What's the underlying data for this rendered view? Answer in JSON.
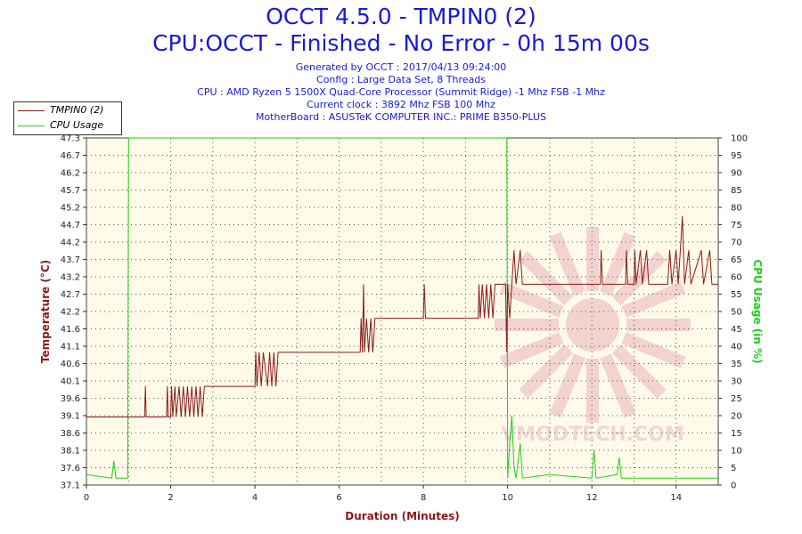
{
  "header": {
    "title": "OCCT 4.5.0 - TMPIN0 (2)",
    "subtitle": "CPU:OCCT - Finished - No Error - 0h 15m 00s",
    "info": [
      "Generated by OCCT : 2017/04/13 09:24:00",
      "Config : Large Data Set, 8 Threads",
      "CPU : AMD Ryzen 5 1500X Quad-Core Processor (Summit Ridge) -1 Mhz FSB -1 Mhz",
      "Current clock : 3892 Mhz FSB 100 Mhz",
      "MotherBoard : ASUSTeK COMPUTER INC.: PRIME B350-PLUS"
    ]
  },
  "watermark": "VMODTECH.COM",
  "colors": {
    "temp": "#8b1a1a",
    "cpu": "#22cc22",
    "title": "#1a1ad4",
    "plot_bg": "#fffbe8",
    "axis_label_left": "#8b1a1a",
    "axis_label_right": "#22cc22"
  },
  "chart_data": {
    "type": "line",
    "xlabel": "Duration (Minutes)",
    "ylabel_left": "Temperature (°C)",
    "ylabel_right": "CPU Usage (in %)",
    "xlim": [
      0,
      15
    ],
    "ylim_left": [
      37.1,
      47.3
    ],
    "ylim_right": [
      0,
      100
    ],
    "grid": true,
    "legend_position": "top-left",
    "x_ticks": [
      "0",
      "2",
      "4",
      "6",
      "8",
      "10",
      "12",
      "14"
    ],
    "y_ticks_left": [
      "37.1",
      "37.6",
      "38.1",
      "38.6",
      "39.1",
      "39.6",
      "40.1",
      "40.6",
      "41.1",
      "41.6",
      "42.2",
      "42.7",
      "43.2",
      "43.7",
      "44.2",
      "44.7",
      "45.2",
      "45.7",
      "46.2",
      "46.7",
      "47.3"
    ],
    "y_ticks_right": [
      "0",
      "5",
      "10",
      "15",
      "20",
      "25",
      "30",
      "35",
      "40",
      "45",
      "50",
      "55",
      "60",
      "65",
      "70",
      "75",
      "80",
      "85",
      "90",
      "95",
      "100"
    ],
    "series": [
      {
        "name": "TMPIN0 (2)",
        "axis": "left",
        "points": [
          [
            0,
            39.1
          ],
          [
            1.38,
            39.1
          ],
          [
            1.4,
            40.0
          ],
          [
            1.42,
            39.1
          ],
          [
            1.9,
            39.1
          ],
          [
            1.92,
            40.0
          ],
          [
            1.94,
            39.1
          ],
          [
            2.0,
            39.1
          ],
          [
            2.02,
            40.0
          ],
          [
            2.05,
            39.1
          ],
          [
            2.1,
            40.0
          ],
          [
            2.13,
            39.1
          ],
          [
            2.2,
            40.0
          ],
          [
            2.25,
            39.1
          ],
          [
            2.3,
            40.0
          ],
          [
            2.35,
            39.1
          ],
          [
            2.4,
            40.0
          ],
          [
            2.45,
            39.1
          ],
          [
            2.5,
            40.0
          ],
          [
            2.55,
            39.1
          ],
          [
            2.6,
            40.0
          ],
          [
            2.65,
            39.1
          ],
          [
            2.7,
            40.0
          ],
          [
            2.75,
            39.1
          ],
          [
            2.8,
            40.0
          ],
          [
            4.0,
            40.0
          ],
          [
            4.02,
            41.0
          ],
          [
            4.05,
            40.0
          ],
          [
            4.1,
            41.0
          ],
          [
            4.15,
            40.0
          ],
          [
            4.2,
            41.0
          ],
          [
            4.3,
            40.0
          ],
          [
            4.35,
            41.0
          ],
          [
            4.4,
            40.0
          ],
          [
            4.45,
            41.0
          ],
          [
            4.5,
            40.0
          ],
          [
            4.55,
            41.0
          ],
          [
            6.5,
            41.0
          ],
          [
            6.52,
            42.0
          ],
          [
            6.55,
            41.0
          ],
          [
            6.58,
            43.0
          ],
          [
            6.6,
            41.0
          ],
          [
            6.65,
            42.0
          ],
          [
            6.7,
            41.0
          ],
          [
            6.75,
            42.0
          ],
          [
            6.8,
            41.0
          ],
          [
            6.85,
            42.0
          ],
          [
            8.0,
            42.0
          ],
          [
            8.02,
            43.0
          ],
          [
            8.05,
            42.0
          ],
          [
            9.3,
            42.0
          ],
          [
            9.32,
            43.0
          ],
          [
            9.35,
            42.0
          ],
          [
            9.4,
            43.0
          ],
          [
            9.45,
            42.0
          ],
          [
            9.5,
            43.0
          ],
          [
            9.55,
            42.0
          ],
          [
            9.6,
            43.0
          ],
          [
            9.65,
            42.0
          ],
          [
            9.7,
            43.0
          ],
          [
            9.8,
            43.0
          ],
          [
            9.95,
            43.0
          ],
          [
            9.98,
            41.0
          ],
          [
            10.0,
            43.0
          ],
          [
            10.05,
            42.0
          ],
          [
            10.1,
            43.0
          ],
          [
            10.15,
            44.0
          ],
          [
            10.2,
            43.0
          ],
          [
            10.3,
            44.0
          ],
          [
            10.35,
            43.0
          ],
          [
            12.2,
            43.0
          ],
          [
            12.22,
            44.0
          ],
          [
            12.25,
            43.0
          ],
          [
            12.8,
            43.0
          ],
          [
            12.82,
            44.0
          ],
          [
            12.85,
            43.0
          ],
          [
            13.0,
            43.0
          ],
          [
            13.02,
            44.0
          ],
          [
            13.05,
            43.0
          ],
          [
            13.15,
            44.0
          ],
          [
            13.2,
            43.0
          ],
          [
            13.3,
            44.0
          ],
          [
            13.35,
            43.0
          ],
          [
            13.8,
            43.0
          ],
          [
            13.85,
            44.0
          ],
          [
            13.9,
            43.0
          ],
          [
            14.0,
            44.0
          ],
          [
            14.05,
            43.0
          ],
          [
            14.15,
            45.0
          ],
          [
            14.2,
            43.0
          ],
          [
            14.3,
            44.0
          ],
          [
            14.35,
            43.0
          ],
          [
            14.6,
            44.0
          ],
          [
            14.65,
            43.0
          ],
          [
            14.8,
            44.0
          ],
          [
            14.85,
            43.0
          ],
          [
            15.0,
            43.0
          ]
        ]
      },
      {
        "name": "CPU Usage",
        "axis": "right",
        "points": [
          [
            0,
            3
          ],
          [
            0.6,
            2
          ],
          [
            0.65,
            7
          ],
          [
            0.7,
            2
          ],
          [
            0.98,
            2
          ],
          [
            1.0,
            100
          ],
          [
            9.98,
            100
          ],
          [
            10.0,
            2
          ],
          [
            10.05,
            12
          ],
          [
            10.1,
            20
          ],
          [
            10.15,
            5
          ],
          [
            10.2,
            2
          ],
          [
            10.3,
            12
          ],
          [
            10.35,
            2
          ],
          [
            11.0,
            3
          ],
          [
            12.0,
            2
          ],
          [
            12.05,
            10
          ],
          [
            12.1,
            2
          ],
          [
            12.6,
            3
          ],
          [
            12.65,
            8
          ],
          [
            12.7,
            2
          ],
          [
            15.0,
            2
          ]
        ]
      }
    ]
  }
}
